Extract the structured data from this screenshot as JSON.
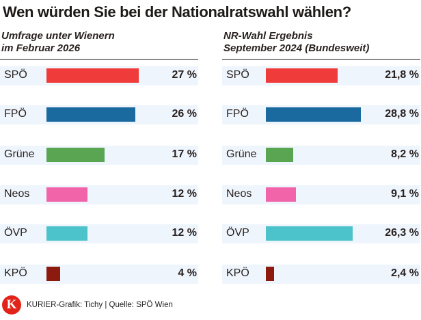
{
  "title": "Wen würden Sie bei der Nationalratswahl wählen?",
  "chart_data": [
    {
      "type": "bar",
      "orientation": "horizontal",
      "title": "Umfrage unter Wienern im Februar 2026",
      "title_lines": [
        "Umfrage unter Wienern",
        "im Februar 2026"
      ],
      "categories": [
        "SPÖ",
        "FPÖ",
        "Grüne",
        "Neos",
        "ÖVP",
        "KPÖ"
      ],
      "values": [
        27,
        26,
        17,
        12,
        12,
        4
      ],
      "value_labels": [
        "27 %",
        "26 %",
        "17 %",
        "12 %",
        "12 %",
        "4 %"
      ],
      "colors": [
        "#ef3b39",
        "#1a6aa0",
        "#5aa552",
        "#f164aa",
        "#4cc3cb",
        "#8c1a0f"
      ],
      "xlim": [
        0,
        30
      ]
    },
    {
      "type": "bar",
      "orientation": "horizontal",
      "title": "NR-Wahl Ergebnis September 2024 (Bundesweit)",
      "title_lines": [
        "NR-Wahl Ergebnis",
        "September 2024 (Bundesweit)"
      ],
      "categories": [
        "SPÖ",
        "FPÖ",
        "Grüne",
        "Neos",
        "ÖVP",
        "KPÖ"
      ],
      "values": [
        21.8,
        28.8,
        8.2,
        9.1,
        26.3,
        2.4
      ],
      "value_labels": [
        "21,8 %",
        "28,8 %",
        "8,2 %",
        "9,1 %",
        "26,3 %",
        "2,4 %"
      ],
      "colors": [
        "#ef3b39",
        "#1a6aa0",
        "#5aa552",
        "#f164aa",
        "#4cc3cb",
        "#8c1a0f"
      ],
      "xlim": [
        0,
        30
      ]
    }
  ],
  "footer": {
    "logo_letter": "K",
    "credit": "KURIER-Grafik: Tichy | Quelle: SPÖ Wien"
  }
}
